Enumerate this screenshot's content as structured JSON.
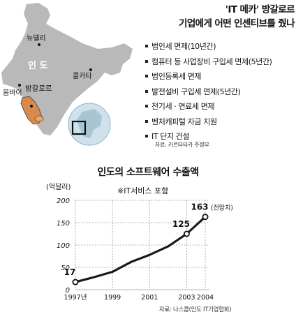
{
  "headline": {
    "line1": "'IT 메카' 방갈로르",
    "line2": "기업에게 어떤 인센티브를 줬나"
  },
  "map": {
    "country_label": "인 도",
    "cities": [
      "뉴델리",
      "콜카타",
      "뭄바이",
      "방갈로르"
    ],
    "colors": {
      "land": "#b9b9b9",
      "highlight": "#d98a4a",
      "globe": "#cfe2ec"
    }
  },
  "incentives": [
    "법인세 면제(10년간)",
    "컴퓨터 등 사업장비 구입세 면제(5년간)",
    "법인등록세 면제",
    "발전설비 구입세 면제(5년간)",
    "전기세 · 연료세 면제",
    "벤처캐피털 자금 지원",
    "IT 단지 건설"
  ],
  "source_top": "자료: 카르타타카 주정부",
  "chart_heading": "인도의 소프트웨어 수출액",
  "chart_note": "※IT서비스 포함",
  "source_bottom": "자료: 나스콤(인도 IT기업협회)",
  "chart_data": {
    "type": "line",
    "title": "인도의 소프트웨어 수출액",
    "ylabel": "(억달러)",
    "ylim": [
      0,
      200
    ],
    "yticks": [
      0,
      50,
      100,
      150,
      200
    ],
    "xlim": [
      1997,
      2004
    ],
    "xticks": [
      1997,
      1999,
      2001,
      2003,
      2004
    ],
    "xtick_labels": [
      "1997년",
      "1999",
      "2001",
      "2003",
      "2004"
    ],
    "grid": "horizontal-dashed",
    "x": [
      1997,
      1998,
      1999,
      2000,
      2001,
      2002,
      2003,
      2004
    ],
    "values": [
      17,
      28,
      40,
      62,
      78,
      97,
      125,
      163
    ],
    "markers": [
      {
        "x": 1997,
        "y": 17,
        "label": "17"
      },
      {
        "x": 2003,
        "y": 125,
        "label": "125"
      },
      {
        "x": 2004,
        "y": 163,
        "label": "163",
        "suffix": "(전망치)"
      }
    ],
    "colors": {
      "line": "#1a1a1a",
      "grid": "#9a9a9a"
    }
  }
}
